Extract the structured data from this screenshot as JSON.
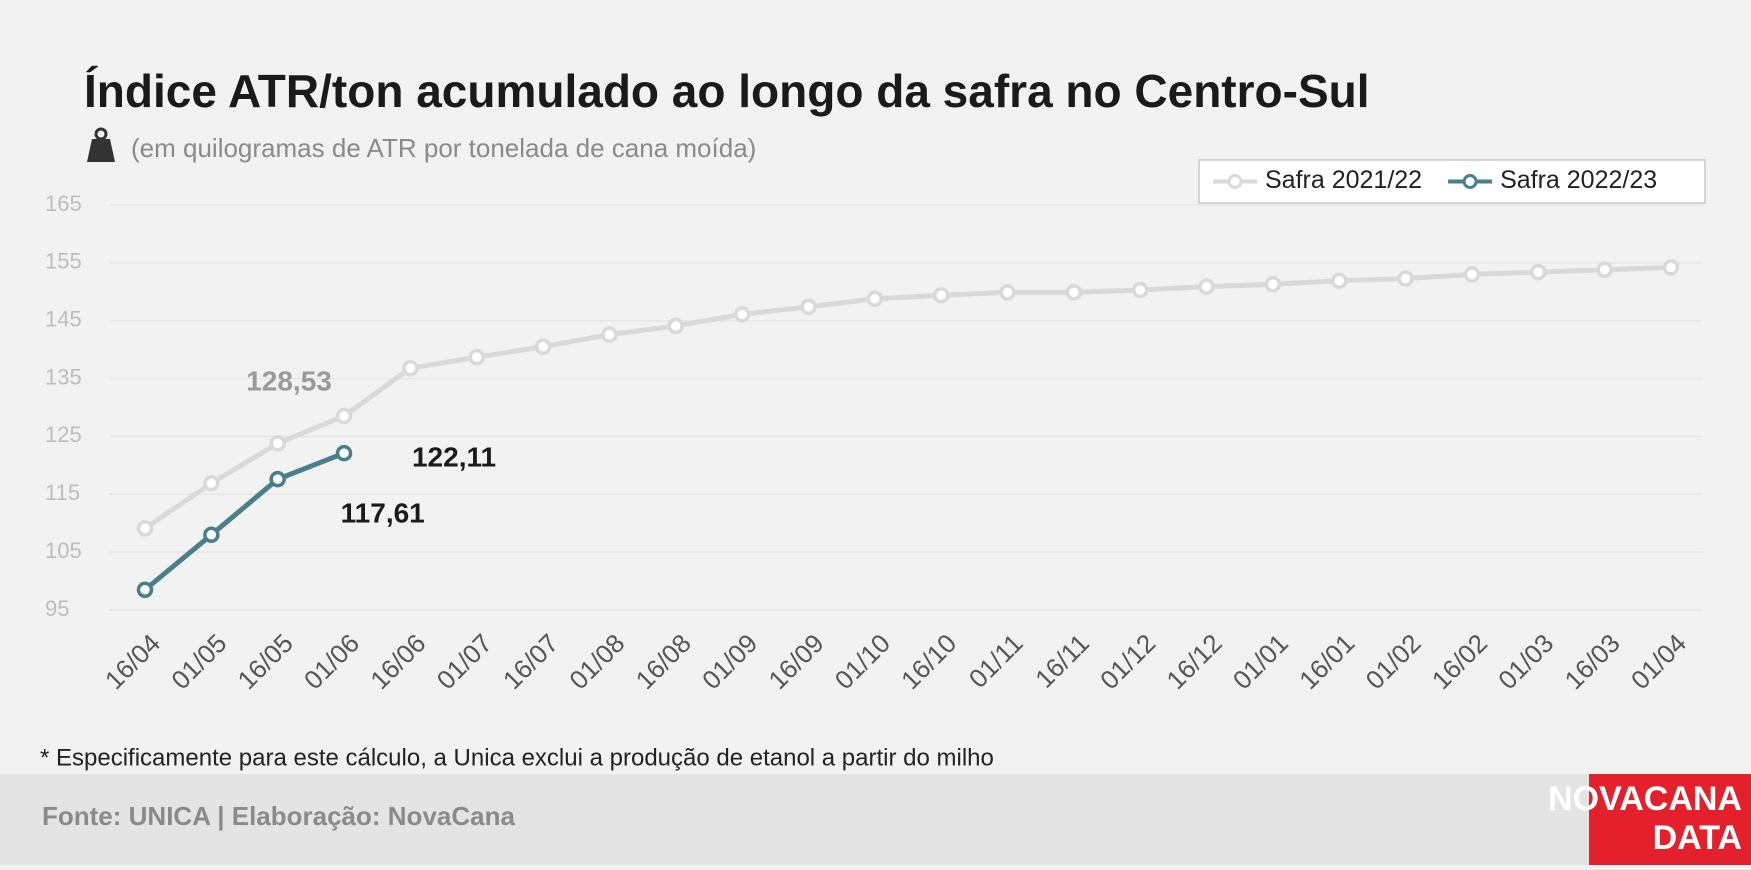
{
  "chart_data": {
    "type": "line",
    "title": "Índice ATR/ton acumulado ao longo da safra no Centro-Sul",
    "subtitle": "(em quilogramas de ATR por tonelada de cana moída)",
    "categories": [
      "16/04",
      "01/05",
      "16/05",
      "01/06",
      "16/06",
      "01/07",
      "16/07",
      "01/08",
      "16/08",
      "01/09",
      "16/09",
      "01/10",
      "16/10",
      "01/11",
      "16/11",
      "01/12",
      "16/12",
      "01/01",
      "16/01",
      "01/02",
      "16/02",
      "01/03",
      "16/03",
      "01/04"
    ],
    "series": [
      {
        "name": "Safra 2021/22",
        "color": "#d9d9d9",
        "values": [
          109.1,
          116.9,
          123.8,
          128.53,
          136.8,
          138.7,
          140.5,
          142.6,
          144.1,
          146.1,
          147.4,
          148.8,
          149.4,
          149.9,
          149.9,
          150.3,
          150.9,
          151.3,
          151.9,
          152.3,
          153.0,
          153.4,
          153.8,
          154.2
        ],
        "value_labels": [
          null,
          null,
          null,
          "128,53",
          null,
          null,
          null,
          null,
          null,
          null,
          null,
          null,
          null,
          null,
          null,
          null,
          null,
          null,
          null,
          null,
          null,
          null,
          null,
          null
        ]
      },
      {
        "name": "Safra 2022/23",
        "color": "#4a7f8a",
        "values": [
          98.5,
          108.0,
          117.61,
          122.11,
          null,
          null,
          null,
          null,
          null,
          null,
          null,
          null,
          null,
          null,
          null,
          null,
          null,
          null,
          null,
          null,
          null,
          null,
          null,
          null
        ],
        "value_labels": [
          null,
          null,
          "117,61",
          "122,11",
          null,
          null,
          null,
          null,
          null,
          null,
          null,
          null,
          null,
          null,
          null,
          null,
          null,
          null,
          null,
          null,
          null,
          null,
          null,
          null
        ]
      }
    ],
    "ylim": [
      95,
      165
    ],
    "yticks": [
      95,
      105,
      115,
      125,
      135,
      145,
      155,
      165
    ],
    "grid": true,
    "legend": "top-right",
    "note": "* Especificamente para este cálculo, a Unica exclui a produção de etanol a partir do milho",
    "source": "Fonte: UNICA | Elaboração: NovaCana",
    "logo": {
      "line1": "NOVACANA",
      "line2": "DATA"
    }
  }
}
